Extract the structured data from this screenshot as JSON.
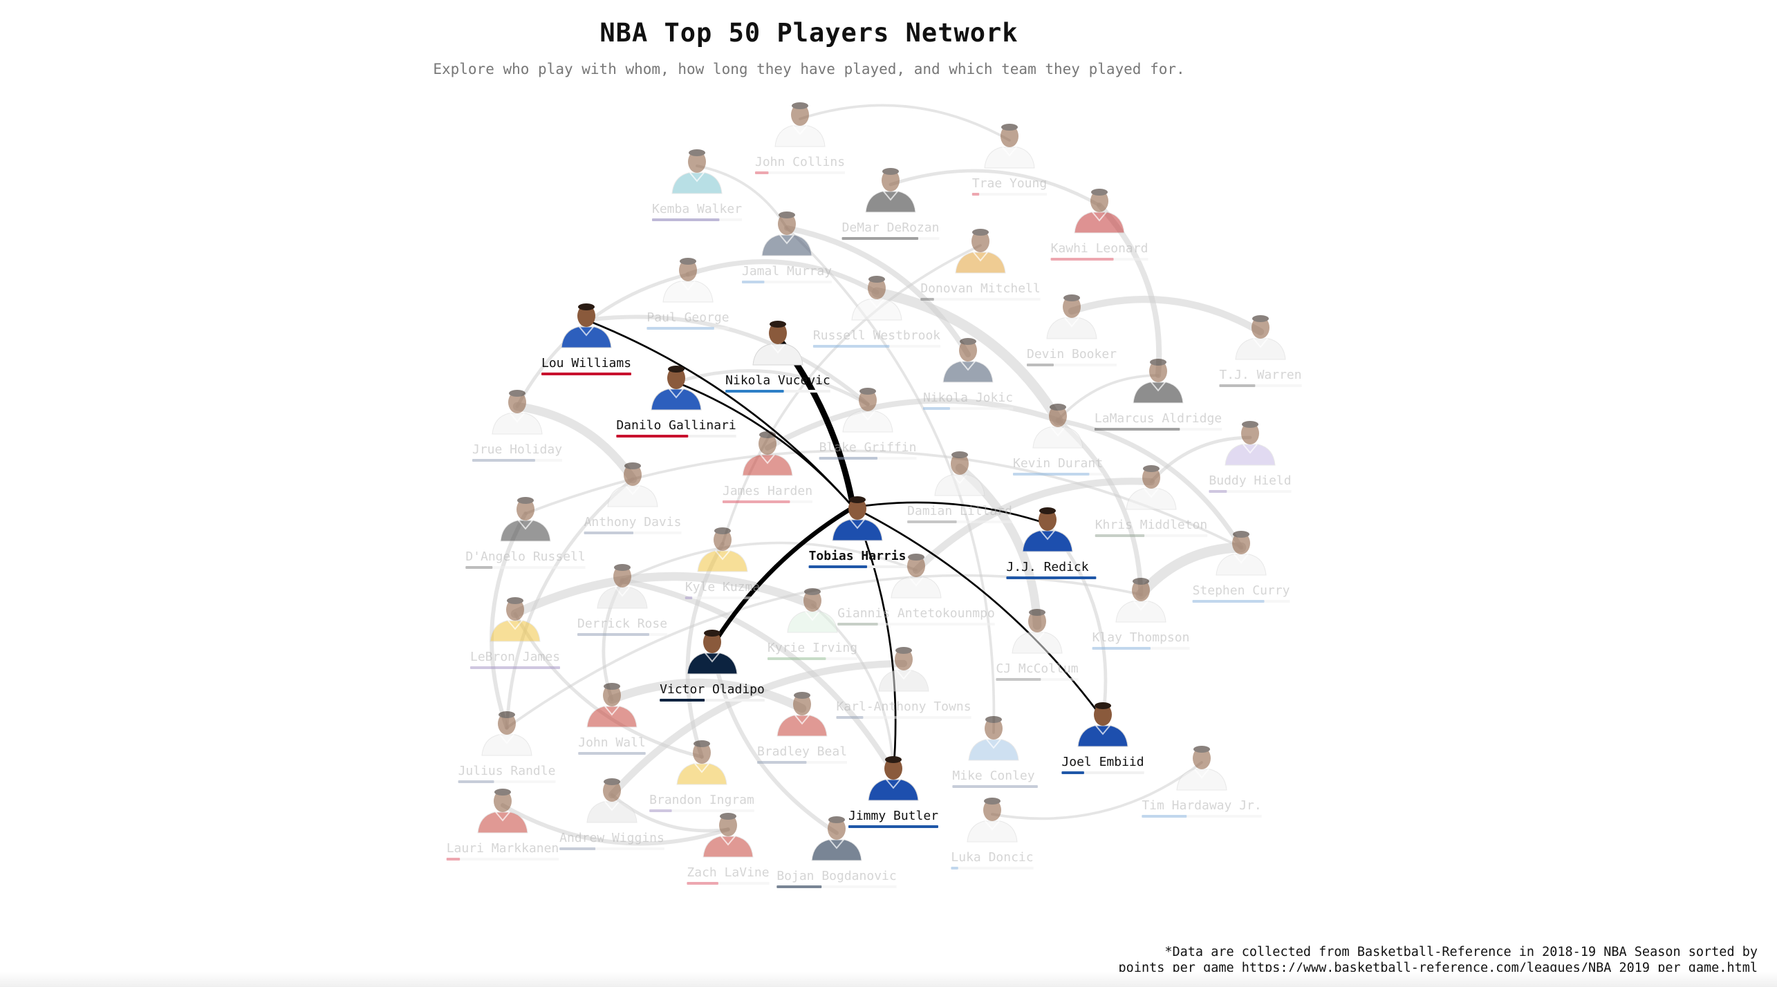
{
  "header": {
    "title": "NBA Top 50 Players Network",
    "subtitle": "Explore who play with whom, how long they have played, and which team they played for."
  },
  "footnote": {
    "line1": "*Data are collected from Basketball-Reference in 2018-19 NBA Season sorted by",
    "line2": "points per game https://www.basketball-reference.com/leagues/NBA_2019_per_game.html"
  },
  "network": {
    "selected": "Tobias Harris",
    "teams": {
      "PHI": {
        "jersey": "#1d4fae",
        "bar": "#1f57a8"
      },
      "LAC": {
        "jersey": "#2d5fbd",
        "bar": "#c8102e"
      },
      "ORL": {
        "jersey": "#f2f2f2",
        "bar": "#2e7fc7"
      },
      "IND": {
        "jersey": "#0c2340",
        "bar": "#0c2340"
      },
      "MIA": {
        "jersey": "#f1f1f1",
        "bar": "#1f57a8"
      },
      "ATL": {
        "jersey": "#f4f4f4",
        "bar": "#e06070"
      },
      "CHA": {
        "jersey": "#7fc6d0",
        "bar": "#8a7fb8"
      },
      "SAS": {
        "jersey": "#333333",
        "bar": "#555555"
      },
      "TOR": {
        "jersey": "#c43a3a",
        "bar": "#e06070"
      },
      "DEN": {
        "jersey": "#4b5a73",
        "bar": "#8fb8e0"
      },
      "UTA": {
        "jersey": "#e3a33b",
        "bar": "#777777"
      },
      "OKC": {
        "jersey": "#f5f5f5",
        "bar": "#8fb8e0"
      },
      "PHO": {
        "jersey": "#eeeeee",
        "bar": "#888888"
      },
      "NOP": {
        "jersey": "#f2f2f2",
        "bar": "#9aa6bb"
      },
      "DET": {
        "jersey": "#f3f3f3",
        "bar": "#8a9ab5"
      },
      "HOU": {
        "jersey": "#c8473d",
        "bar": "#e06070"
      },
      "POR": {
        "jersey": "#f0f0f0",
        "bar": "#999999"
      },
      "GSW": {
        "jersey": "#f2f2f2",
        "bar": "#8fb8e0"
      },
      "MIL": {
        "jersey": "#f2f2f2",
        "bar": "#9aa89a"
      },
      "SAC": {
        "jersey": "#c9bde6",
        "bar": "#a89ac8"
      },
      "LAL": {
        "jersey": "#f1c644",
        "bar": "#a89ac8"
      },
      "BKN": {
        "jersey": "#444444",
        "bar": "#888888"
      },
      "MIN": {
        "jersey": "#e6e6e6",
        "bar": "#9aa6bb"
      },
      "BOS": {
        "jersey": "#dff1e2",
        "bar": "#9ac09a"
      },
      "NYK": {
        "jersey": "#f0f0f0",
        "bar": "#8a9ab5"
      },
      "WAS": {
        "jersey": "#c8473d",
        "bar": "#9aa6bb"
      },
      "MEM": {
        "jersey": "#a7c7e6",
        "bar": "#9aa6bb"
      },
      "DAL": {
        "jersey": "#f1f1f1",
        "bar": "#8fb8e0"
      },
      "CHI": {
        "jersey": "#c8473d",
        "bar": "#e06070"
      },
      "CLE": {
        "jersey": "#8a2432",
        "bar": "#8a9ab5"
      }
    },
    "players": [
      {
        "name": "John Collins",
        "team": "ATL",
        "bar": 0.15
      },
      {
        "name": "Trae Young",
        "team": "ATL",
        "bar": 0.08
      },
      {
        "name": "Kemba Walker",
        "team": "CHA",
        "bar": 0.75
      },
      {
        "name": "DeMar DeRozan",
        "team": "SAS",
        "bar": 0.85
      },
      {
        "name": "Kawhi Leonard",
        "team": "TOR",
        "bar": 0.7
      },
      {
        "name": "Jamal Murray",
        "team": "DEN",
        "bar": 0.25
      },
      {
        "name": "Donovan Mitchell",
        "team": "UTA",
        "bar": 0.15
      },
      {
        "name": "Paul George",
        "team": "OKC",
        "bar": 0.75
      },
      {
        "name": "Lou Williams",
        "team": "LAC",
        "bar": 1.0
      },
      {
        "name": "Nikola Vucevic",
        "team": "ORL",
        "bar": 0.65
      },
      {
        "name": "Russell Westbrook",
        "team": "OKC",
        "bar": 0.85
      },
      {
        "name": "Devin Booker",
        "team": "PHO",
        "bar": 0.3
      },
      {
        "name": "T.J. Warren",
        "team": "PHO",
        "bar": 0.4
      },
      {
        "name": "Nikola Jokic",
        "team": "DEN",
        "bar": 0.3
      },
      {
        "name": "Danilo Gallinari",
        "team": "LAC",
        "bar": 0.8
      },
      {
        "name": "Jrue Holiday",
        "team": "NOP",
        "bar": 0.7
      },
      {
        "name": "LaMarcus Aldridge",
        "team": "SAS",
        "bar": 0.95
      },
      {
        "name": "Blake Griffin",
        "team": "DET",
        "bar": 0.65
      },
      {
        "name": "Kevin Durant",
        "team": "GSW",
        "bar": 0.85
      },
      {
        "name": "Buddy Hield",
        "team": "SAC",
        "bar": 0.2
      },
      {
        "name": "James Harden",
        "team": "HOU",
        "bar": 0.75
      },
      {
        "name": "Damian Lillard",
        "team": "POR",
        "bar": 0.55
      },
      {
        "name": "Anthony Davis",
        "team": "NOP",
        "bar": 0.55
      },
      {
        "name": "Tobias Harris",
        "team": "PHI",
        "bar": 0.65
      },
      {
        "name": "Khris Middleton",
        "team": "MIL",
        "bar": 0.55
      },
      {
        "name": "D'Angelo Russell",
        "team": "BKN",
        "bar": 0.3
      },
      {
        "name": "J.J. Redick",
        "team": "PHI",
        "bar": 1.0
      },
      {
        "name": "Kyle Kuzma",
        "team": "LAL",
        "bar": 0.08
      },
      {
        "name": "Stephen Curry",
        "team": "GSW",
        "bar": 0.8
      },
      {
        "name": "Derrick Rose",
        "team": "MIN",
        "bar": 0.8
      },
      {
        "name": "Giannis Antetokounmpo",
        "team": "MIL",
        "bar": 0.45
      },
      {
        "name": "Klay Thompson",
        "team": "GSW",
        "bar": 0.65
      },
      {
        "name": "Kyrie Irving",
        "team": "BOS",
        "bar": 0.65
      },
      {
        "name": "LeBron James",
        "team": "LAL",
        "bar": 1.0
      },
      {
        "name": "CJ McCollum",
        "team": "POR",
        "bar": 0.5
      },
      {
        "name": "Victor Oladipo",
        "team": "IND",
        "bar": 0.5
      },
      {
        "name": "Karl-Anthony Towns",
        "team": "MIN",
        "bar": 0.3
      },
      {
        "name": "Joel Embiid",
        "team": "PHI",
        "bar": 0.25
      },
      {
        "name": "John Wall",
        "team": "WAS",
        "bar": 0.75
      },
      {
        "name": "Bradley Beal",
        "team": "WAS",
        "bar": 0.55
      },
      {
        "name": "Julius Randle",
        "team": "NOP",
        "bar": 0.4
      },
      {
        "name": "Mike Conley",
        "team": "MEM",
        "bar": 0.95
      },
      {
        "name": "Tim Hardaway Jr.",
        "team": "DAL",
        "bar": 0.5
      },
      {
        "name": "Brandon Ingram",
        "team": "LAL",
        "bar": 0.25
      },
      {
        "name": "Jimmy Butler",
        "team": "PHI",
        "bar": 1.0
      },
      {
        "name": "Andrew Wiggins",
        "team": "MIN",
        "bar": 0.4
      },
      {
        "name": "Lauri Markkanen",
        "team": "CHI",
        "bar": 0.15
      },
      {
        "name": "Luka Doncic",
        "team": "DAL",
        "bar": 0.08
      },
      {
        "name": "Zach LaVine",
        "team": "CHI",
        "bar": 0.35
      },
      {
        "name": "Bojan Bogdanovic",
        "team": "IND",
        "bar": 0.5
      }
    ],
    "highlighted_links": [
      {
        "source": "Tobias Harris",
        "target": "Nikola Vucevic",
        "weight": 10
      },
      {
        "source": "Tobias Harris",
        "target": "Victor Oladipo",
        "weight": 7
      },
      {
        "source": "Tobias Harris",
        "target": "Lou Williams",
        "weight": 2
      },
      {
        "source": "Tobias Harris",
        "target": "Danilo Gallinari",
        "weight": 2
      },
      {
        "source": "Tobias Harris",
        "target": "J.J. Redick",
        "weight": 2
      },
      {
        "source": "Tobias Harris",
        "target": "Joel Embiid",
        "weight": 2
      },
      {
        "source": "Tobias Harris",
        "target": "Jimmy Butler",
        "weight": 2
      }
    ],
    "background_links": [
      {
        "source": "LeBron James",
        "target": "Kyrie Irving",
        "weight": 10
      },
      {
        "source": "Kevin Durant",
        "target": "Russell Westbrook",
        "weight": 12
      },
      {
        "source": "Stephen Curry",
        "target": "Klay Thompson",
        "weight": 12
      },
      {
        "source": "Damian Lillard",
        "target": "CJ McCollum",
        "weight": 10
      },
      {
        "source": "John Wall",
        "target": "Bradley Beal",
        "weight": 10
      },
      {
        "source": "James Harden",
        "target": "Kevin Durant",
        "weight": 6
      },
      {
        "source": "Paul George",
        "target": "Russell Westbrook",
        "weight": 5
      },
      {
        "source": "Kawhi Leonard",
        "target": "LaMarcus Aldridge",
        "weight": 6
      },
      {
        "source": "DeMar DeRozan",
        "target": "Kawhi Leonard",
        "weight": 3
      },
      {
        "source": "Jrue Holiday",
        "target": "Anthony Davis",
        "weight": 10
      },
      {
        "source": "Kevin Durant",
        "target": "Stephen Curry",
        "weight": 5
      },
      {
        "source": "Kevin Durant",
        "target": "Klay Thompson",
        "weight": 5
      },
      {
        "source": "Giannis Antetokounmpo",
        "target": "Khris Middleton",
        "weight": 8
      },
      {
        "source": "Nikola Jokic",
        "target": "Jamal Murray",
        "weight": 6
      },
      {
        "source": "Karl-Anthony Towns",
        "target": "Andrew Wiggins",
        "weight": 8
      },
      {
        "source": "Brandon Ingram",
        "target": "Kyle Kuzma",
        "weight": 4
      },
      {
        "source": "Devin Booker",
        "target": "T.J. Warren",
        "weight": 8
      },
      {
        "source": "John Collins",
        "target": "Trae Young",
        "weight": 2
      },
      {
        "source": "Derrick Rose",
        "target": "Jimmy Butler",
        "weight": 6
      },
      {
        "source": "Lauri Markkanen",
        "target": "Zach LaVine",
        "weight": 4
      },
      {
        "source": "Luka Doncic",
        "target": "Tim Hardaway Jr.",
        "weight": 2
      },
      {
        "source": "Blake Griffin",
        "target": "Lou Williams",
        "weight": 4
      },
      {
        "source": "Mike Conley",
        "target": "Jamal Murray",
        "weight": 2
      },
      {
        "source": "Julius Randle",
        "target": "Anthony Davis",
        "weight": 3
      },
      {
        "source": "D'Angelo Russell",
        "target": "Julius Randle",
        "weight": 4
      },
      {
        "source": "LeBron James",
        "target": "Brandon Ingram",
        "weight": 3
      },
      {
        "source": "Kemba Walker",
        "target": "Jamal Murray",
        "weight": 2
      },
      {
        "source": "Bojan Bogdanovic",
        "target": "Victor Oladipo",
        "weight": 4
      },
      {
        "source": "Buddy Hield",
        "target": "Khris Middleton",
        "weight": 3
      },
      {
        "source": "Joel Embiid",
        "target": "J.J. Redick",
        "weight": 3
      },
      {
        "source": "Donovan Mitchell",
        "target": "Kyle Kuzma",
        "weight": 2
      },
      {
        "source": "Kyrie Irving",
        "target": "Jimmy Butler",
        "weight": 2
      },
      {
        "source": "Derrick Rose",
        "target": "John Wall",
        "weight": 3
      },
      {
        "source": "Zach LaVine",
        "target": "Andrew Wiggins",
        "weight": 3
      },
      {
        "source": "Kevin Durant",
        "target": "LaMarcus Aldridge",
        "weight": 2
      },
      {
        "source": "Klay Thompson",
        "target": "Julius Randle",
        "weight": 2
      },
      {
        "source": "Stephen Curry",
        "target": "D'Angelo Russell",
        "weight": 2
      },
      {
        "source": "Paul George",
        "target": "Jrue Holiday",
        "weight": 3
      },
      {
        "source": "Danilo Gallinari",
        "target": "Blake Griffin",
        "weight": 3
      },
      {
        "source": "Giannis Antetokounmpo",
        "target": "Derrick Rose",
        "weight": 2
      }
    ]
  }
}
